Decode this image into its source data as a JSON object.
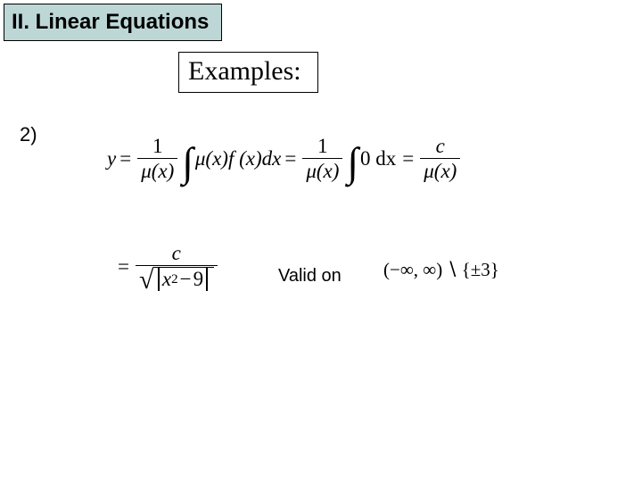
{
  "colors": {
    "header_bg": "#bdd7d7",
    "page_bg": "#ffffff",
    "text": "#000000",
    "border": "#000000"
  },
  "header": {
    "title": "II. Linear Equations"
  },
  "examples_box": {
    "label": "Examples:"
  },
  "item": {
    "number": "2)"
  },
  "eq1": {
    "y": "y",
    "eq": "=",
    "one": "1",
    "mu_x": "μ(x)",
    "intg": "∫",
    "mu_x_f_x_dx": "μ(x)f (x)dx",
    "zero_dx": "0 dx",
    "c": "c"
  },
  "eq2": {
    "eq": "=",
    "c": "c",
    "x2": "x",
    "sq": "2",
    "minus": "−",
    "nine": "9"
  },
  "valid": {
    "label": "Valid on",
    "open": "(−∞, ∞)",
    "setminus": "∖",
    "exclude": "{±3}"
  }
}
